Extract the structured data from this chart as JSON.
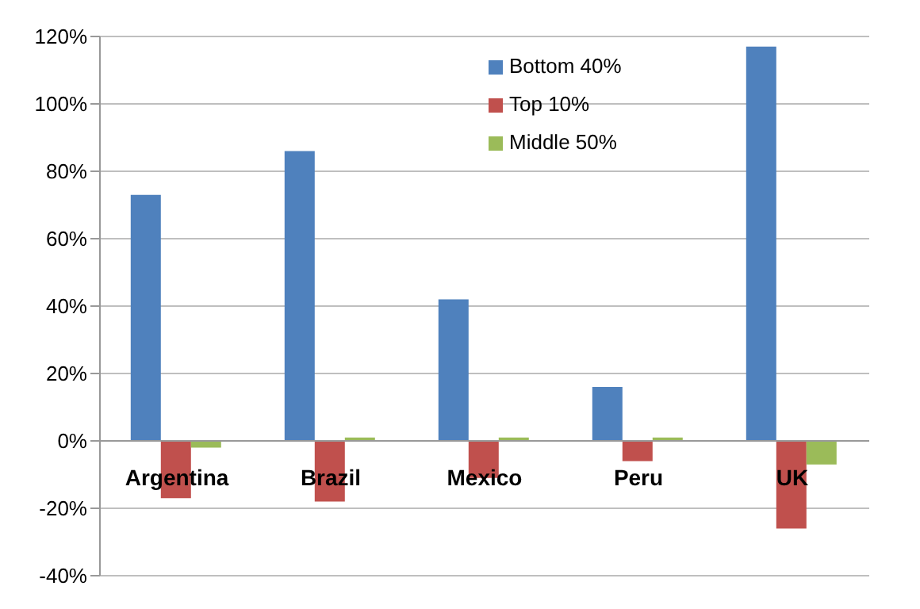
{
  "chart_data": {
    "type": "bar",
    "categories": [
      "Argentina",
      "Brazil",
      "Mexico",
      "Peru",
      "UK"
    ],
    "series": [
      {
        "name": "Bottom 40%",
        "color": "#4f81bd",
        "values": [
          73,
          86,
          42,
          16,
          117
        ]
      },
      {
        "name": "Top 10%",
        "color": "#c0504d",
        "values": [
          -17,
          -18,
          -11,
          -6,
          -26
        ]
      },
      {
        "name": "Middle 50%",
        "color": "#9bbb59",
        "values": [
          -2,
          1,
          1,
          1,
          -7
        ]
      }
    ],
    "ylim": [
      -40,
      120
    ],
    "yticks": [
      {
        "value": -40,
        "label": "-40%"
      },
      {
        "value": -20,
        "label": "-20%"
      },
      {
        "value": 0,
        "label": "0%"
      },
      {
        "value": 20,
        "label": "20%"
      },
      {
        "value": 40,
        "label": "40%"
      },
      {
        "value": 60,
        "label": "60%"
      },
      {
        "value": 80,
        "label": "80%"
      },
      {
        "value": 100,
        "label": "100%"
      },
      {
        "value": 120,
        "label": "120%"
      }
    ],
    "grid": "y",
    "legend": "top"
  }
}
